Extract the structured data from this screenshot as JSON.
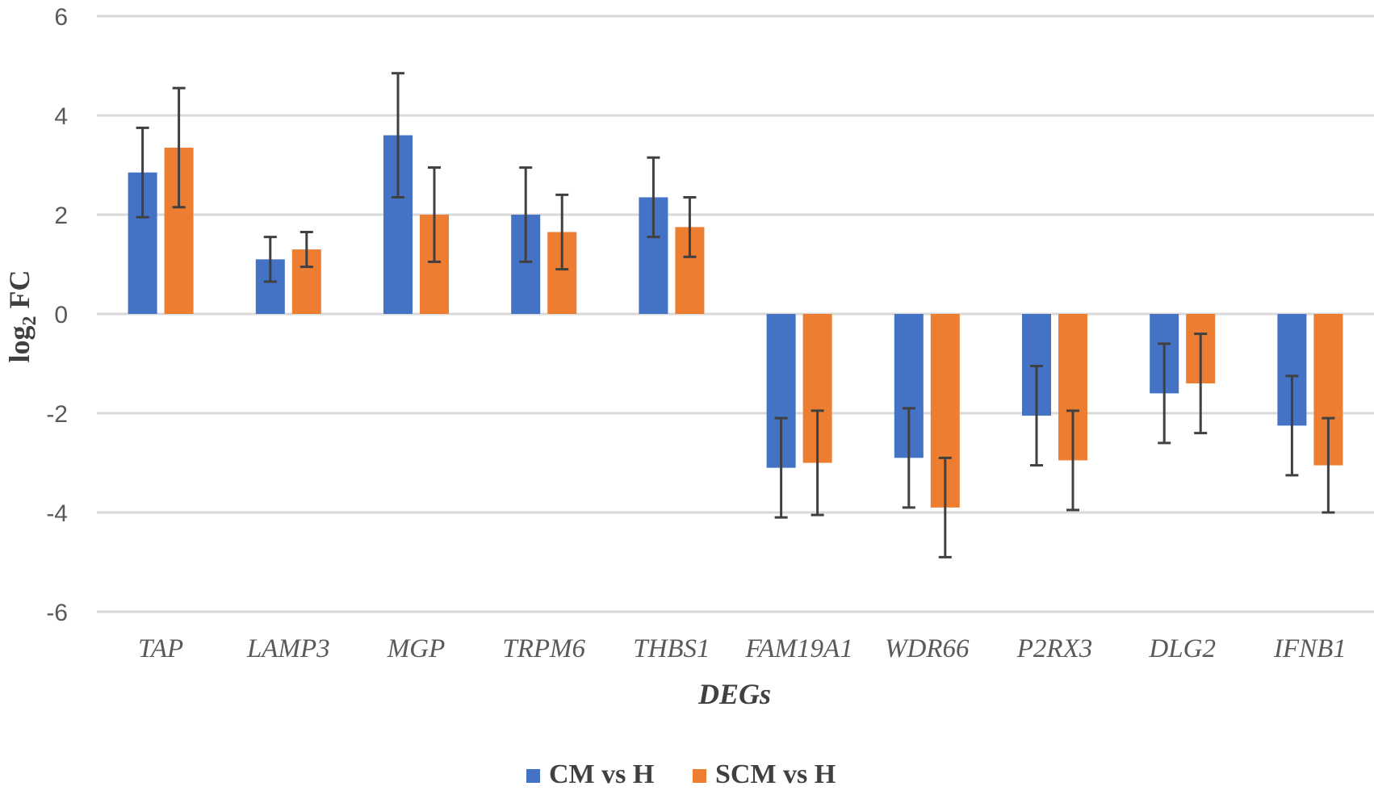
{
  "chart_data": {
    "type": "bar",
    "title": "",
    "xlabel": "DEGs",
    "ylabel_main": "log",
    "ylabel_sub": "2",
    "ylabel_rest": " FC",
    "ylim": [
      -6,
      6
    ],
    "yticks": [
      6,
      4,
      2,
      0,
      -2,
      -4,
      -6
    ],
    "ytick_labels": [
      "6",
      "4",
      "2",
      "0",
      "-2",
      "-4",
      "-6"
    ],
    "grid": true,
    "legend_position": "bottom-center",
    "categories": [
      "TAP",
      "LAMP3",
      "MGP",
      "TRPM6",
      "THBS1",
      "FAM19A1",
      "WDR66",
      "P2RX3",
      "DLG2",
      "IFNB1"
    ],
    "series": [
      {
        "name": "CM vs H",
        "color": "#4472C4",
        "values": [
          2.85,
          1.1,
          3.6,
          2.0,
          2.35,
          -3.1,
          -2.9,
          -2.05,
          -1.6,
          -2.25
        ],
        "error": [
          0.9,
          0.45,
          1.25,
          0.95,
          0.8,
          1.0,
          1.0,
          1.0,
          1.0,
          1.0
        ]
      },
      {
        "name": "SCM vs H",
        "color": "#ED7D31",
        "values": [
          3.35,
          1.3,
          2.0,
          1.65,
          1.75,
          -3.0,
          -3.9,
          -2.95,
          -1.4,
          -3.05
        ],
        "error": [
          1.2,
          0.35,
          0.95,
          0.75,
          0.6,
          1.05,
          1.0,
          1.0,
          1.0,
          0.95
        ]
      }
    ]
  }
}
